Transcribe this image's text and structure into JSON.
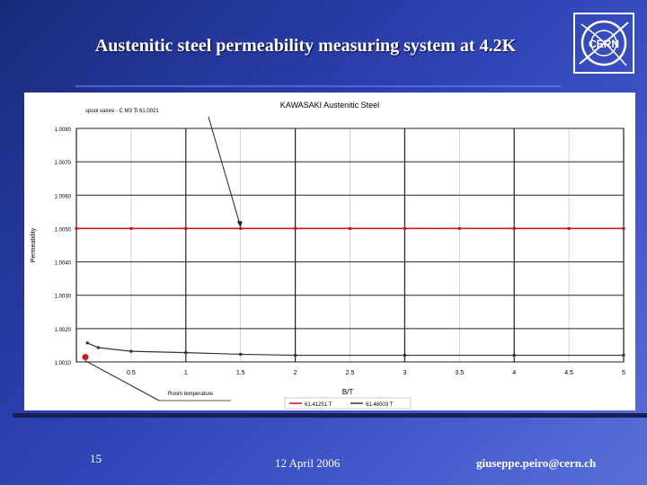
{
  "slide": {
    "title": "Austenitic steel permeability measuring system at 4.2K",
    "page_number": "15",
    "date": "12 April 2006",
    "email": "giuseppe.peiro@cern.ch",
    "logo_text": "CERN"
  },
  "chart_data": {
    "type": "line",
    "title": "KAWASAKI Austenitic Steel",
    "xlabel": "B/T",
    "ylabel": "Permeability",
    "xlim": [
      0,
      5
    ],
    "ylim": [
      1.001,
      1.008
    ],
    "x_ticks": [
      0,
      0.5,
      1,
      1.5,
      2,
      2.5,
      3,
      3.5,
      4,
      4.5,
      5
    ],
    "x_tick_labels": [
      "",
      "0.5",
      "1",
      "1.5",
      "2",
      "2.5",
      "3",
      "3.5",
      "4",
      "4.5",
      "5"
    ],
    "y_ticks": [
      1.001,
      1.002,
      1.003,
      1.004,
      1.005,
      1.006,
      1.007,
      1.008
    ],
    "y_tick_labels": [
      "1.0010",
      "1.0020",
      "1.0030",
      "1.0040",
      "1.0050",
      "1.0060",
      "1.0070",
      "1.0080"
    ],
    "series": [
      {
        "name": "61.41251 T",
        "color": "#cc1111",
        "x": [
          0,
          0.5,
          1,
          1.5,
          2,
          2.5,
          3,
          3.5,
          4,
          4.5,
          5
        ],
        "y": [
          1.005,
          1.005,
          1.005,
          1.005,
          1.005,
          1.005,
          1.005,
          1.005,
          1.005,
          1.005,
          1.005
        ]
      },
      {
        "name": "61.48003 T",
        "color": "#333333",
        "x": [
          0.1,
          0.2,
          0.5,
          1,
          1.5,
          2,
          3,
          4,
          5
        ],
        "y": [
          1.00157,
          1.00143,
          1.00132,
          1.00128,
          1.00123,
          1.0012,
          1.0012,
          1.0012,
          1.0012
        ]
      }
    ],
    "annotations": [
      {
        "text": "spool valore  -  C  M3  Ti  61.0021",
        "x": 1.5,
        "y": 1.005
      },
      {
        "text": "Room temperature",
        "x": 0.08,
        "y": 1.0012
      }
    ],
    "legend_position": "bottom",
    "grid": true
  }
}
